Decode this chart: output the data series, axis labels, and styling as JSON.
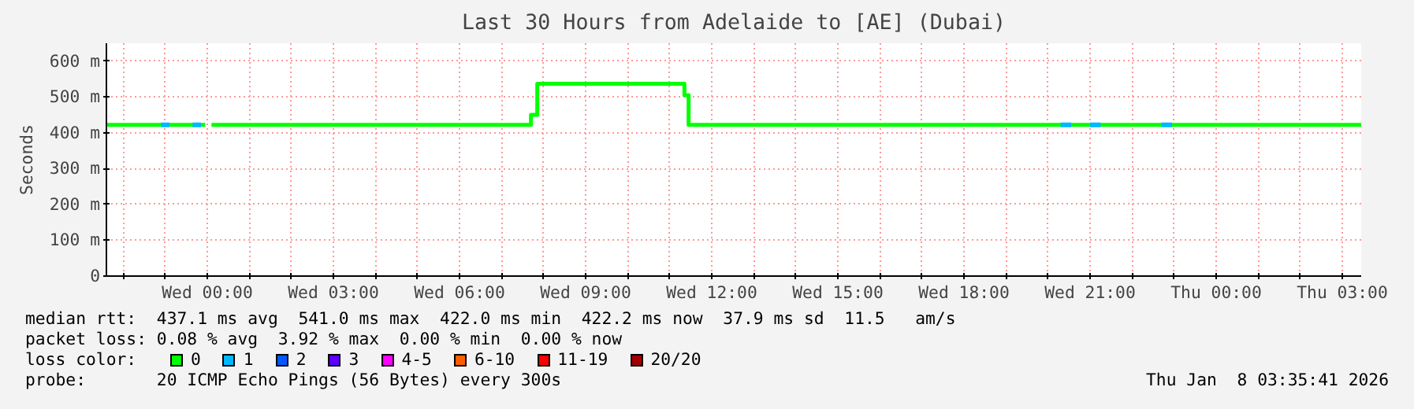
{
  "chart_data": {
    "type": "step",
    "title": "Last 30 Hours from Adelaide to [AE] (Dubai)",
    "ylabel": "Seconds",
    "legend_title": "loss color:",
    "xlim": [
      "2026-01-06T21:36",
      "2026-01-08T03:27"
    ],
    "ylim": [
      0,
      650
    ],
    "xticks": [
      {
        "value": "2026-01-06T22:00",
        "label": null
      },
      {
        "value": "2026-01-06T23:00",
        "label": null
      },
      {
        "value": "2026-01-07T00:00",
        "label": "Wed 00:00"
      },
      {
        "value": "2026-01-07T01:00",
        "label": null
      },
      {
        "value": "2026-01-07T02:00",
        "label": null
      },
      {
        "value": "2026-01-07T03:00",
        "label": "Wed 03:00"
      },
      {
        "value": "2026-01-07T04:00",
        "label": null
      },
      {
        "value": "2026-01-07T05:00",
        "label": null
      },
      {
        "value": "2026-01-07T06:00",
        "label": "Wed 06:00"
      },
      {
        "value": "2026-01-07T07:00",
        "label": null
      },
      {
        "value": "2026-01-07T08:00",
        "label": null
      },
      {
        "value": "2026-01-07T09:00",
        "label": "Wed 09:00"
      },
      {
        "value": "2026-01-07T10:00",
        "label": null
      },
      {
        "value": "2026-01-07T11:00",
        "label": null
      },
      {
        "value": "2026-01-07T12:00",
        "label": "Wed 12:00"
      },
      {
        "value": "2026-01-07T13:00",
        "label": null
      },
      {
        "value": "2026-01-07T14:00",
        "label": null
      },
      {
        "value": "2026-01-07T15:00",
        "label": "Wed 15:00"
      },
      {
        "value": "2026-01-07T16:00",
        "label": null
      },
      {
        "value": "2026-01-07T17:00",
        "label": null
      },
      {
        "value": "2026-01-07T18:00",
        "label": "Wed 18:00"
      },
      {
        "value": "2026-01-07T19:00",
        "label": null
      },
      {
        "value": "2026-01-07T20:00",
        "label": null
      },
      {
        "value": "2026-01-07T21:00",
        "label": "Wed 21:00"
      },
      {
        "value": "2026-01-07T22:00",
        "label": null
      },
      {
        "value": "2026-01-07T23:00",
        "label": null
      },
      {
        "value": "2026-01-08T00:00",
        "label": "Thu 00:00"
      },
      {
        "value": "2026-01-08T01:00",
        "label": null
      },
      {
        "value": "2026-01-08T02:00",
        "label": null
      },
      {
        "value": "2026-01-08T03:00",
        "label": "Thu 03:00"
      }
    ],
    "yticks": [
      0,
      {
        "value": 100,
        "label": "100 m"
      },
      {
        "value": 200,
        "label": "200 m"
      },
      {
        "value": 300,
        "label": "300 m"
      },
      {
        "value": 400,
        "label": "400 m"
      },
      {
        "value": 500,
        "label": "500 m"
      },
      {
        "value": 600,
        "label": "600 m"
      }
    ],
    "grid": true,
    "legend": "bottom",
    "series": [
      {
        "name": "0",
        "color": "#00ff00",
        "x": [
          "2026-01-06T21:36",
          "2026-01-06T23:57",
          "2026-01-07T00:00",
          "2026-01-07T00:06",
          "2026-01-07T07:42",
          "2026-01-07T07:51",
          "2026-01-07T11:21",
          "2026-01-07T11:27",
          "2026-01-08T03:27"
        ],
        "values": [
          422,
          422,
          null,
          422,
          450,
          537,
          505,
          422,
          422
        ]
      },
      {
        "name": "1",
        "type": "line",
        "color": "#00b8ff",
        "x": [
          "2026-01-06T22:54",
          "2026-01-06T23:06",
          "2026-01-06T23:09",
          "2026-01-06T23:39",
          "2026-01-06T23:51",
          "2026-01-06T23:54",
          "2026-01-07T20:18",
          "2026-01-07T20:33",
          "2026-01-07T20:40",
          "2026-01-07T21:00",
          "2026-01-07T21:15",
          "2026-01-07T21:20",
          "2026-01-07T22:42",
          "2026-01-07T22:57"
        ],
        "values": [
          422,
          422,
          null,
          422,
          422,
          null,
          422,
          422,
          null,
          422,
          422,
          null,
          422,
          422
        ]
      },
      {
        "name": "2",
        "color": "#0059ff"
      },
      {
        "name": "3",
        "color": "#5e00ff"
      },
      {
        "name": "4-5",
        "color": "#ff00ff"
      },
      {
        "name": "6-10",
        "color": "#ff5e00"
      },
      {
        "name": "11-19",
        "color": "#ff0000"
      },
      {
        "name": "20/20",
        "color": "#a10000"
      }
    ],
    "annotations": [
      "median rtt:  437.1 ms avg  541.0 ms max  422.0 ms min  422.2 ms now  37.9 ms sd  11.5   am/s",
      "packet loss: 0.08 % avg  3.92 % max  0.00 % min  0.00 % now",
      "probe:       20 ICMP Echo Pings (56 Bytes) every 300s",
      "Thu Jan  8 03:35:41 2026"
    ]
  }
}
